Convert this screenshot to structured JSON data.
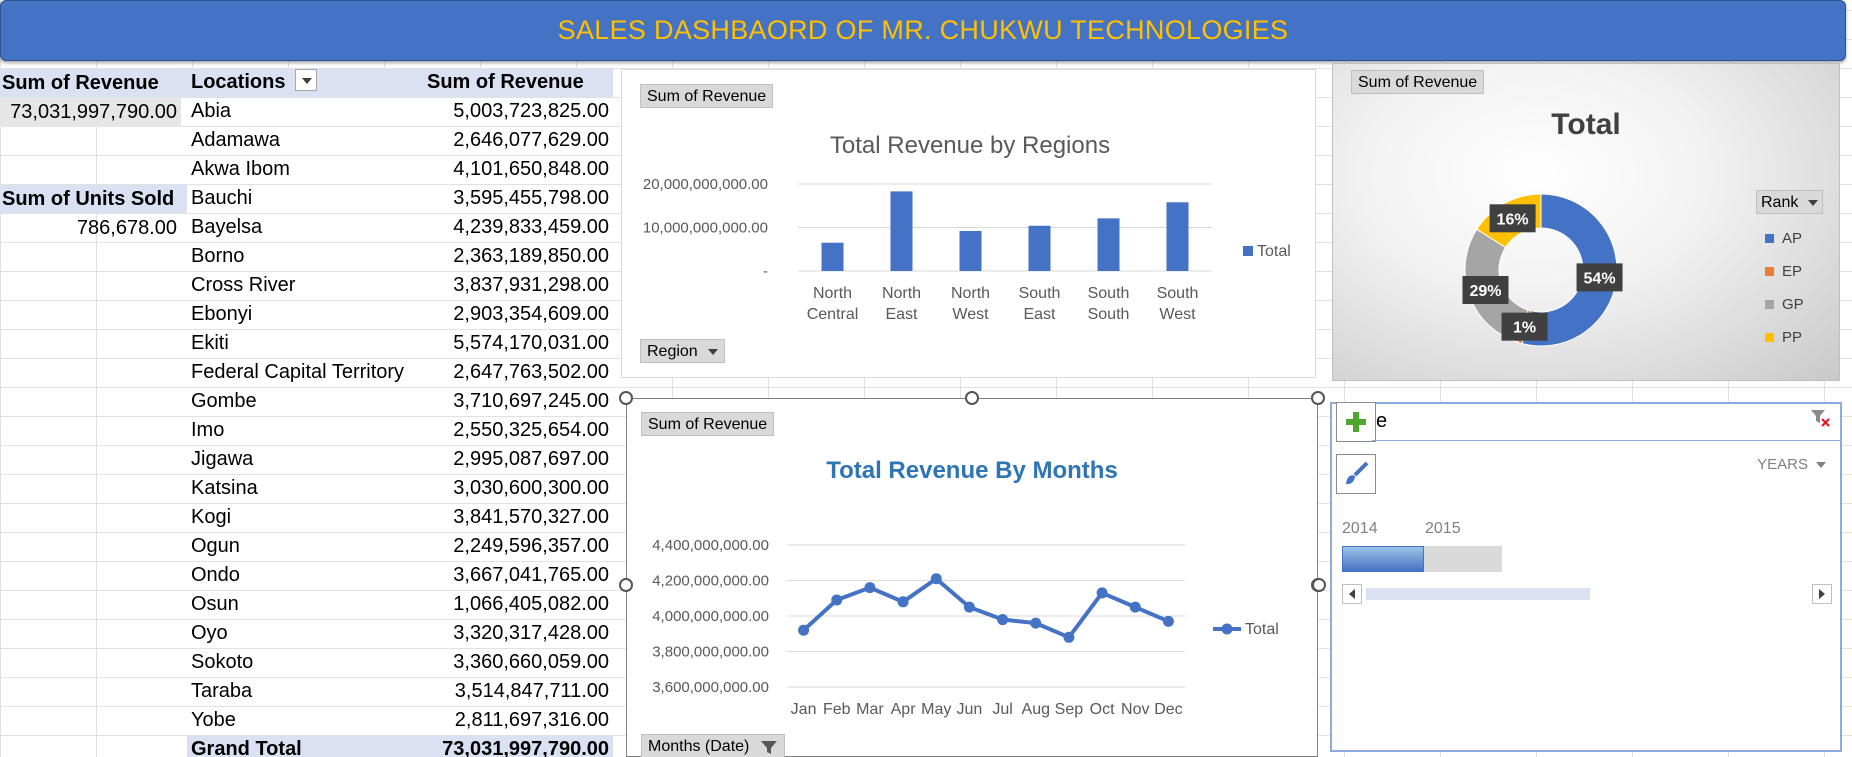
{
  "banner": {
    "title": "SALES DASHBAORD OF MR. CHUKWU TECHNOLOGIES"
  },
  "summary": {
    "revenue_label": "Sum of Revenue",
    "revenue_value": "73,031,997,790.00",
    "units_label": "Sum of Units Sold",
    "units_value": "786,678.00"
  },
  "locations_table": {
    "col_location": "Locations",
    "col_revenue": "Sum of Revenue",
    "rows": [
      {
        "name": "Abia",
        "revenue": "5,003,723,825.00"
      },
      {
        "name": "Adamawa",
        "revenue": "2,646,077,629.00"
      },
      {
        "name": "Akwa Ibom",
        "revenue": "4,101,650,848.00"
      },
      {
        "name": "Bauchi",
        "revenue": "3,595,455,798.00"
      },
      {
        "name": "Bayelsa",
        "revenue": "4,239,833,459.00"
      },
      {
        "name": "Borno",
        "revenue": "2,363,189,850.00"
      },
      {
        "name": "Cross River",
        "revenue": "3,837,931,298.00"
      },
      {
        "name": "Ebonyi",
        "revenue": "2,903,354,609.00"
      },
      {
        "name": "Ekiti",
        "revenue": "5,574,170,031.00"
      },
      {
        "name": "Federal Capital Territory",
        "revenue": "2,647,763,502.00"
      },
      {
        "name": "Gombe",
        "revenue": "3,710,697,245.00"
      },
      {
        "name": "Imo",
        "revenue": "2,550,325,654.00"
      },
      {
        "name": "Jigawa",
        "revenue": "2,995,087,697.00"
      },
      {
        "name": "Katsina",
        "revenue": "3,030,600,300.00"
      },
      {
        "name": "Kogi",
        "revenue": "3,841,570,327.00"
      },
      {
        "name": "Ogun",
        "revenue": "2,249,596,357.00"
      },
      {
        "name": "Ondo",
        "revenue": "3,667,041,765.00"
      },
      {
        "name": "Osun",
        "revenue": "1,066,405,082.00"
      },
      {
        "name": "Oyo",
        "revenue": "3,320,317,428.00"
      },
      {
        "name": "Sokoto",
        "revenue": "3,360,660,059.00"
      },
      {
        "name": "Taraba",
        "revenue": "3,514,847,711.00"
      },
      {
        "name": "Yobe",
        "revenue": "2,811,697,316.00"
      }
    ],
    "grand_total_label": "Grand Total",
    "grand_total_value": "73,031,997,790.00"
  },
  "chart_data": [
    {
      "type": "bar",
      "field_button": "Sum of Revenue",
      "axis_button": "Region",
      "title": "Total Revenue by Regions",
      "categories": [
        [
          "North",
          "Central"
        ],
        [
          "North",
          "East"
        ],
        [
          "North",
          "West"
        ],
        [
          "South",
          "East"
        ],
        [
          "South",
          "South"
        ],
        [
          "South",
          "West"
        ]
      ],
      "series": [
        {
          "name": "Total",
          "values": [
            6500000000,
            18300000000,
            9200000000,
            10400000000,
            12100000000,
            15800000000
          ]
        }
      ],
      "yticks": [
        "20,000,000,000.00",
        "10,000,000,000.00",
        "-"
      ],
      "ylim": [
        0,
        20000000000
      ],
      "color": "#4472c4"
    },
    {
      "type": "line",
      "field_button": "Sum of Revenue",
      "axis_button": "Months (Date)",
      "title": "Total Revenue By Months",
      "categories": [
        "Jan",
        "Feb",
        "Mar",
        "Apr",
        "May",
        "Jun",
        "Jul",
        "Aug",
        "Sep",
        "Oct",
        "Nov",
        "Dec"
      ],
      "series": [
        {
          "name": "Total",
          "values": [
            3920000000,
            4090000000,
            4160000000,
            4080000000,
            4210000000,
            4050000000,
            3980000000,
            3960000000,
            3880000000,
            4130000000,
            4050000000,
            3970000000
          ]
        }
      ],
      "yticks": [
        "4,400,000,000.00",
        "4,200,000,000.00",
        "4,000,000,000.00",
        "3,800,000,000.00",
        "3,600,000,000.00"
      ],
      "ylim": [
        3600000000,
        4400000000
      ],
      "color": "#4472c4",
      "title_color": "#2e75b6"
    },
    {
      "type": "pie",
      "field_button": "Sum of Revenue",
      "title": "Total",
      "legend_title": "Rank",
      "slices": [
        {
          "name": "AP",
          "value": 54,
          "label": "54%",
          "color": "#4472c4"
        },
        {
          "name": "EP",
          "value": 1,
          "label": "1%",
          "color": "#ed7d31"
        },
        {
          "name": "GP",
          "value": 29,
          "label": "29%",
          "color": "#a5a5a5"
        },
        {
          "name": "PP",
          "value": 16,
          "label": "16%",
          "color": "#ffc000"
        }
      ]
    }
  ],
  "timeline": {
    "title_fragment": "e",
    "period_label": "YEARS",
    "years": [
      "2014",
      "2015"
    ]
  }
}
